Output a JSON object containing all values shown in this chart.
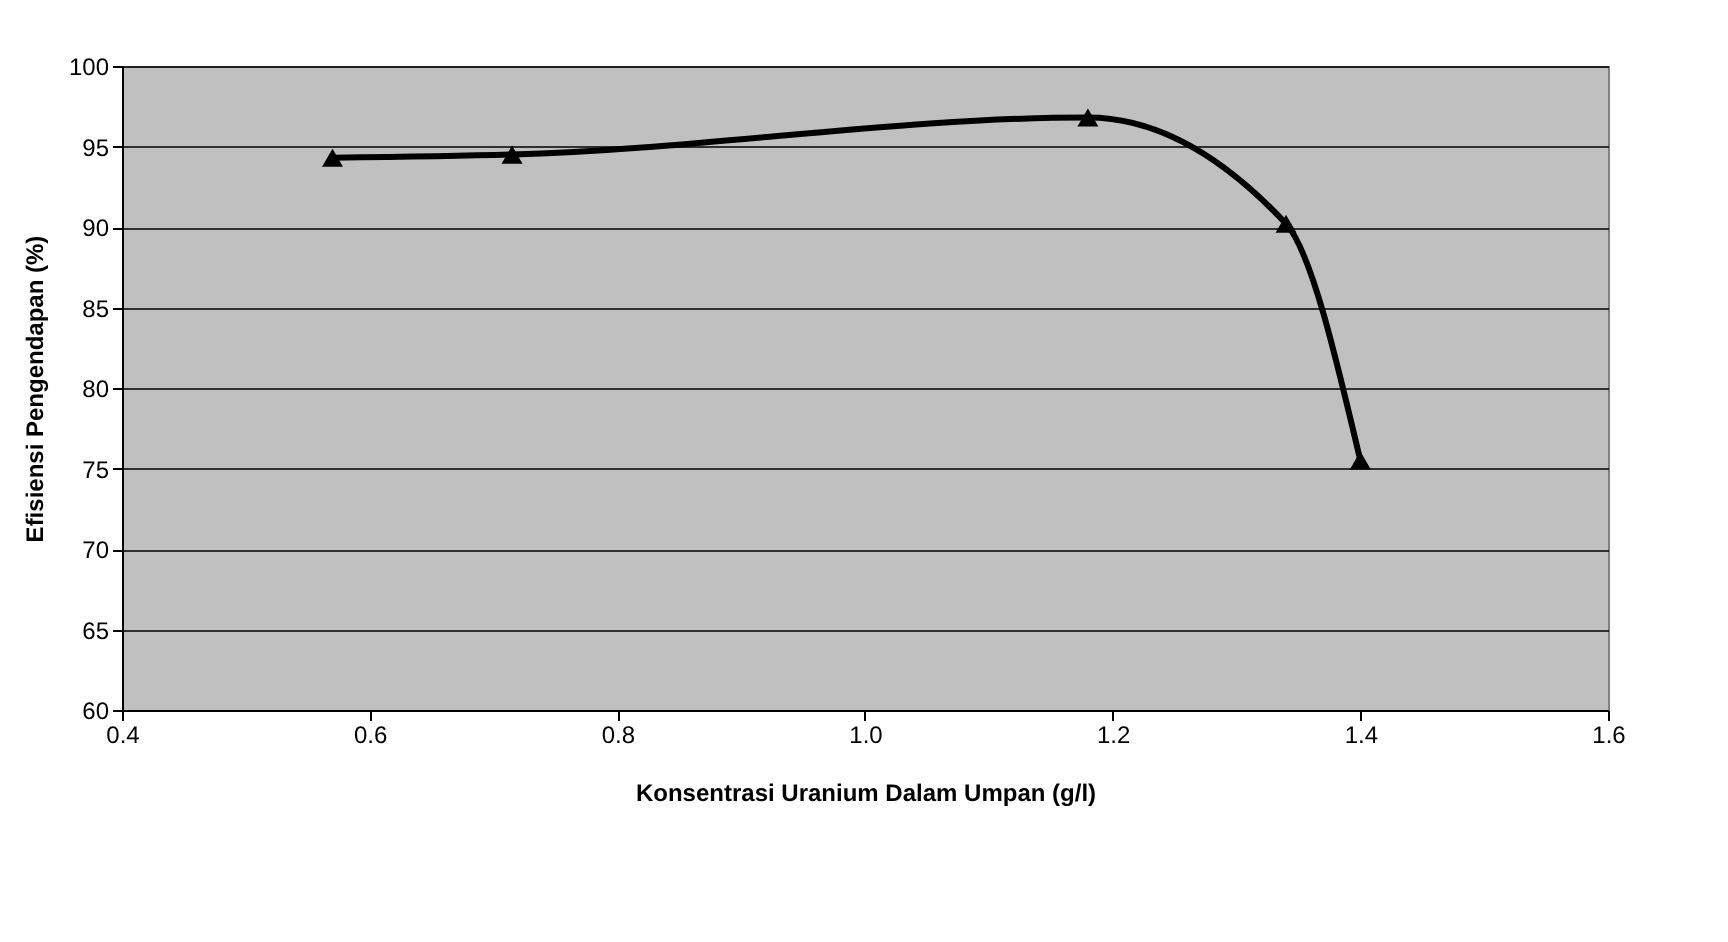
{
  "chart_data": {
    "type": "line",
    "xlabel": "Konsentrasi Uranium Dalam Umpan (g/l)",
    "ylabel": "Efisiensi Pengendapan (%)",
    "x": [
      0.57,
      0.715,
      1.18,
      1.34,
      1.4
    ],
    "series": [
      {
        "color": "#000000",
        "values": [
          94.3,
          94.5,
          96.8,
          90.2,
          75.5
        ]
      }
    ],
    "xlim": [
      0.4,
      1.6
    ],
    "xticks": [
      {
        "value": 0.4,
        "label": "0.4"
      },
      {
        "value": 0.6,
        "label": "0.6"
      },
      {
        "value": 0.8,
        "label": "0.8"
      },
      {
        "value": 1.0,
        "label": "1.0"
      },
      {
        "value": 1.2,
        "label": "1.2"
      },
      {
        "value": 1.4,
        "label": "1.4"
      },
      {
        "value": 1.6,
        "label": "1.6"
      }
    ],
    "ylim": [
      60,
      100
    ],
    "yticks": [
      60,
      65,
      70,
      75,
      80,
      85,
      90,
      95,
      100
    ],
    "grid": "y",
    "marker": "triangle",
    "line_style": "solid"
  }
}
